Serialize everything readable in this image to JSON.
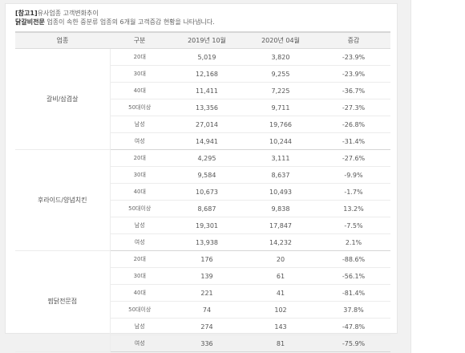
{
  "caption": {
    "title_bracket": "[참고1]",
    "title_text": "유사업종 고객변화추이",
    "subtitle_bold": "닭갈비전문",
    "subtitle_text": "업종이 속한 중분류 업종의 6개월 고객증감 현황을 나타냅니다."
  },
  "table": {
    "headers": [
      "업종",
      "구분",
      "2019년 10월",
      "2020년 04월",
      "증감"
    ],
    "groups": [
      {
        "category": "갈비/삼겹살",
        "rows": [
          {
            "label": "20대",
            "v1": "5,019",
            "v2": "3,820",
            "change": "-23.9%"
          },
          {
            "label": "30대",
            "v1": "12,168",
            "v2": "9,255",
            "change": "-23.9%"
          },
          {
            "label": "40대",
            "v1": "11,411",
            "v2": "7,225",
            "change": "-36.7%"
          },
          {
            "label": "50대이상",
            "v1": "13,356",
            "v2": "9,711",
            "change": "-27.3%"
          },
          {
            "label": "남성",
            "v1": "27,014",
            "v2": "19,766",
            "change": "-26.8%"
          },
          {
            "label": "여성",
            "v1": "14,941",
            "v2": "10,244",
            "change": "-31.4%"
          }
        ]
      },
      {
        "category": "후라이드/양념치킨",
        "rows": [
          {
            "label": "20대",
            "v1": "4,295",
            "v2": "3,111",
            "change": "-27.6%"
          },
          {
            "label": "30대",
            "v1": "9,584",
            "v2": "8,637",
            "change": "-9.9%"
          },
          {
            "label": "40대",
            "v1": "10,673",
            "v2": "10,493",
            "change": "-1.7%"
          },
          {
            "label": "50대이상",
            "v1": "8,687",
            "v2": "9,838",
            "change": "13.2%"
          },
          {
            "label": "남성",
            "v1": "19,301",
            "v2": "17,847",
            "change": "-7.5%"
          },
          {
            "label": "여성",
            "v1": "13,938",
            "v2": "14,232",
            "change": "2.1%"
          }
        ]
      },
      {
        "category": "찜닭전문점",
        "rows": [
          {
            "label": "20대",
            "v1": "176",
            "v2": "20",
            "change": "-88.6%"
          },
          {
            "label": "30대",
            "v1": "139",
            "v2": "61",
            "change": "-56.1%"
          },
          {
            "label": "40대",
            "v1": "221",
            "v2": "41",
            "change": "-81.4%"
          },
          {
            "label": "50대이상",
            "v1": "74",
            "v2": "102",
            "change": "37.8%"
          },
          {
            "label": "남성",
            "v1": "274",
            "v2": "143",
            "change": "-47.8%"
          },
          {
            "label": "여성",
            "v1": "336",
            "v2": "81",
            "change": "-75.9%"
          }
        ]
      }
    ]
  }
}
